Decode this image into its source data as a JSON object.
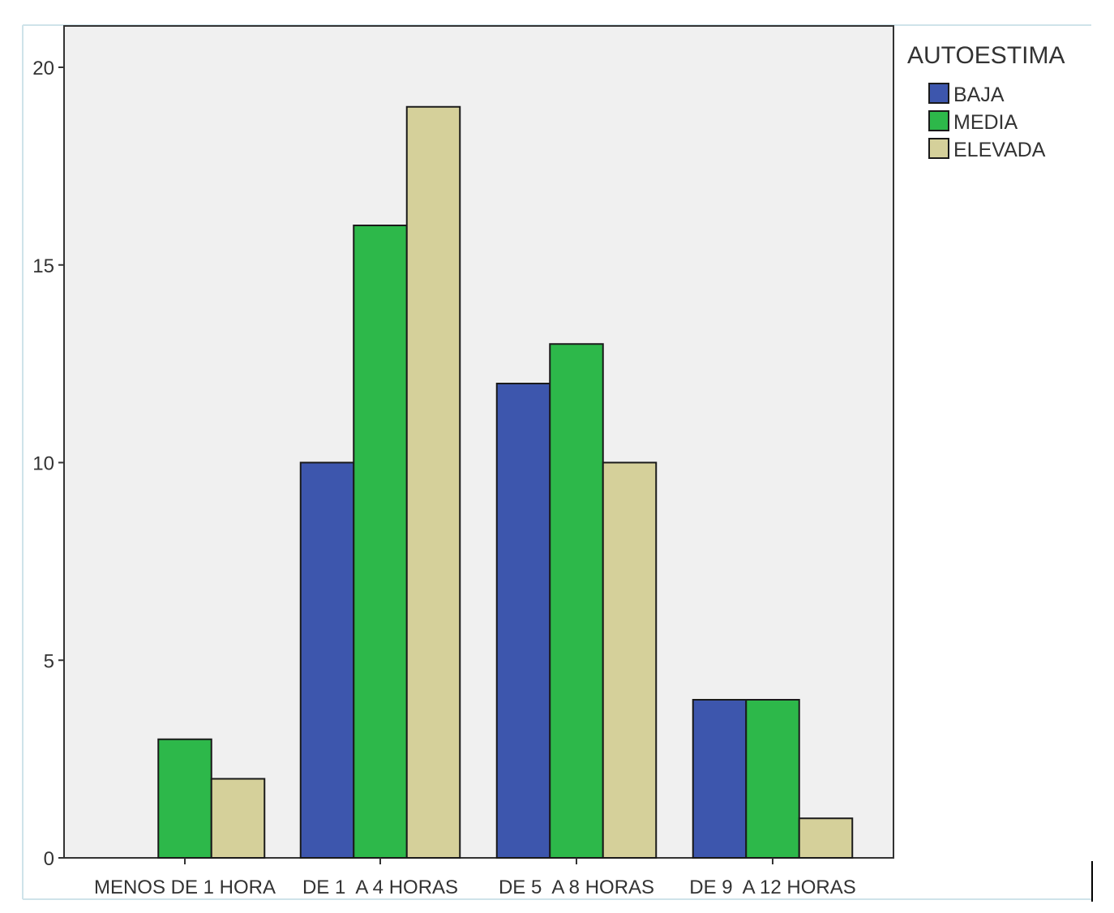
{
  "chart_data": {
    "type": "bar",
    "title": "",
    "xlabel": "",
    "ylabel": "",
    "categories": [
      "MENOS DE 1 HORA",
      "DE 1  A 4 HORAS",
      "DE 5  A 8 HORAS",
      "DE 9  A 12 HORAS"
    ],
    "series": [
      {
        "name": "BAJA",
        "values": [
          0,
          10,
          12,
          4
        ],
        "color": "#3d56ad"
      },
      {
        "name": "MEDIA",
        "values": [
          3,
          16,
          13,
          4
        ],
        "color": "#2db84a"
      },
      {
        "name": "ELEVADA",
        "values": [
          2,
          19,
          10,
          1
        ],
        "color": "#d5d09a"
      }
    ],
    "ylim": [
      0,
      21
    ],
    "yticks": [
      0,
      5,
      10,
      15,
      20
    ],
    "legend": {
      "title": "AUTOESTIMA",
      "placement": "right"
    },
    "grid": false,
    "plot_background": "#f0f0f0"
  }
}
